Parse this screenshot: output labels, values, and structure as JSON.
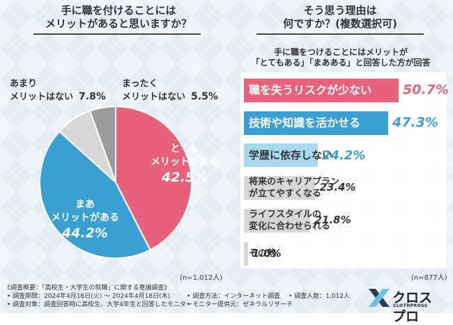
{
  "left": {
    "question_lines": [
      "手に職を付けることには",
      "メリットがあると思いますか？"
    ],
    "n_note": "(n=1,012人)"
  },
  "right": {
    "question_lines": [
      "そう思う理由は",
      "何ですか？(複数選択可)"
    ],
    "subtitle_lines": [
      "手に職をつけることにはメリットが",
      "「とてもある」「まあある」と回答した方が回答"
    ],
    "n_note": "(n=877人)"
  },
  "colors": {
    "pink": "#e8627c",
    "blue": "#3aa0d2",
    "light_blue": "#a8d8ef",
    "light_gray": "#d7d7d7",
    "mid_gray": "#b9b9b9",
    "dark_gray": "#9a9a9a"
  },
  "chart_data": [
    {
      "type": "pie",
      "title": "手に職を付けることにはメリットがあると思いますか？",
      "slices": [
        {
          "name_lines": [
            "とても",
            "メリットがある"
          ],
          "value": 42.5,
          "display": "42.5%"
        },
        {
          "name_lines": [
            "まあ",
            "メリットがある"
          ],
          "value": 44.2,
          "display": "44.2%"
        },
        {
          "name_lines": [
            "あまり",
            "メリットはない"
          ],
          "value": 7.8,
          "display": "7.8%"
        },
        {
          "name_lines": [
            "まったく",
            "メリットはない"
          ],
          "value": 5.5,
          "display": "5.5%"
        }
      ]
    },
    {
      "type": "bar",
      "title": "そう思う理由は何ですか？(複数選択可)",
      "categories": [
        [
          "職を失うリスクが少ない"
        ],
        [
          "技術や知識を活かせる"
        ],
        [
          "学歴に依存しない"
        ],
        [
          "将来のキャリアプラン",
          "が立てやすくなる"
        ],
        [
          "ライフスタイルの",
          "変化に合わせられる"
        ],
        [
          "その他"
        ]
      ],
      "values": [
        50.7,
        47.3,
        24.2,
        23.4,
        21.8,
        1.0
      ],
      "displays": [
        "50.7%",
        "47.3%",
        "24.2%",
        "23.4%",
        "21.8%",
        "1.0%"
      ],
      "xlim": [
        0,
        60
      ]
    }
  ],
  "footer": {
    "survey_name": "《調査概要：「高校生・大学生の就職」に関する意識調査》",
    "period": "• 調査期間：2024年4月16日(火) ～ 2024年4月18日(木)",
    "method": "• 調査方法：インターネット調査",
    "count": "• 調査人数：1,012人",
    "target": "• 調査対象：調査回答時に高校生、大学4年生と回答したモニター",
    "provider": "• モニター提供元：ゼネラルリサーチ"
  },
  "logo": {
    "name": "クロスプロ",
    "sub": "CLOTHPROSS"
  }
}
